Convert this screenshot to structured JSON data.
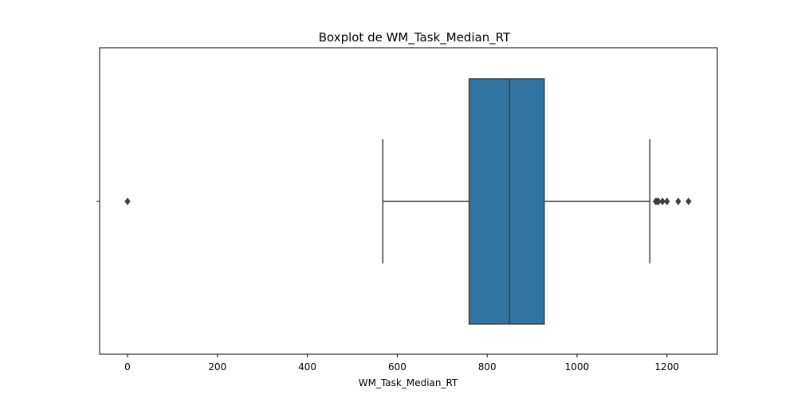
{
  "chart_data": {
    "type": "boxplot",
    "title": "Boxplot de WM_Task_Median_RT",
    "xlabel": "WM_Task_Median_RT",
    "ylabel": "",
    "orientation": "horizontal",
    "xlim": [
      -62,
      1312
    ],
    "xticks": [
      0,
      200,
      400,
      600,
      800,
      1000,
      1200
    ],
    "xtick_labels": [
      "0",
      "200",
      "400",
      "600",
      "800",
      "1000",
      "1200"
    ],
    "grid": false,
    "series": [
      {
        "whisker_low": 568,
        "q1": 760,
        "median": 850,
        "q3": 927,
        "whisker_high": 1162,
        "outliers": [
          0,
          1175,
          1178,
          1181,
          1190,
          1200,
          1225,
          1248
        ]
      }
    ],
    "colors": {
      "box_fill": "#3274a1",
      "line": "#3f3f3f",
      "outlier": "#3f3f3f",
      "frame": "#000000"
    }
  }
}
